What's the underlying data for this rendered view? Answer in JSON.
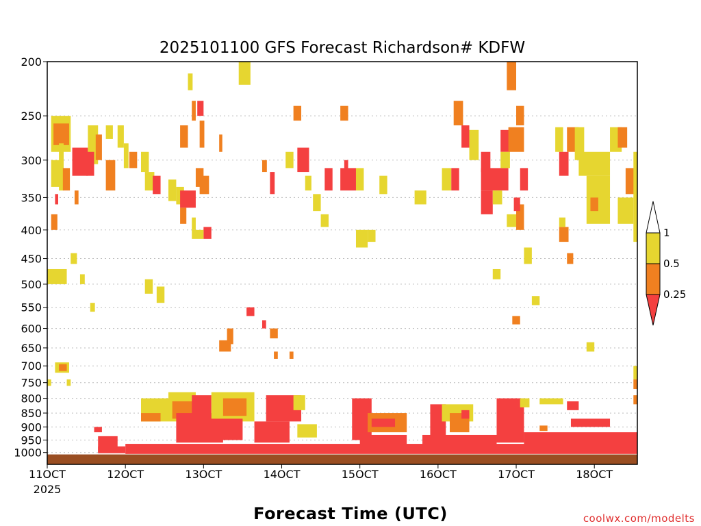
{
  "chart_data": {
    "type": "heatmap",
    "title": "2025101100 GFS Forecast Richardson# KDFW",
    "xlabel": "Forecast Time (UTC)",
    "ylabel": "",
    "credit": "coolwx.com/modelts",
    "x_start_day": 11,
    "x_end_day": 18.55,
    "x_ticks": [
      {
        "day": 11,
        "label": "11OCT",
        "sublabel": "2025"
      },
      {
        "day": 12,
        "label": "12OCT",
        "sublabel": ""
      },
      {
        "day": 13,
        "label": "13OCT",
        "sublabel": ""
      },
      {
        "day": 14,
        "label": "14OCT",
        "sublabel": ""
      },
      {
        "day": 15,
        "label": "15OCT",
        "sublabel": ""
      },
      {
        "day": 16,
        "label": "16OCT",
        "sublabel": ""
      },
      {
        "day": 17,
        "label": "17OCT",
        "sublabel": ""
      },
      {
        "day": 18,
        "label": "18OCT",
        "sublabel": ""
      }
    ],
    "y_axis": {
      "type": "log-pressure",
      "unit": "hPa",
      "top": 200,
      "bottom": 1050
    },
    "y_ticks": [
      200,
      250,
      300,
      350,
      400,
      450,
      500,
      550,
      600,
      650,
      700,
      750,
      800,
      850,
      900,
      950,
      1000
    ],
    "legend": {
      "categories": [
        {
          "label": "",
          "range": "> 1",
          "color": "#ffffff"
        },
        {
          "label": "1",
          "range": "0.5 - 1",
          "color": "#e6d630"
        },
        {
          "label": "0.5",
          "range": "0.25 - 0.5",
          "color": "#f08020"
        },
        {
          "label": "0.25",
          "range": "< 0.25",
          "color": "#f44040"
        }
      ]
    },
    "colors": {
      "yellow": "#e6d630",
      "orange": "#f08020",
      "red": "#f44040",
      "ground": "#9a4e22",
      "grid": "#bbbbbb"
    },
    "ground_top_hPa": 1008,
    "cells": [
      {
        "t": 11.05,
        "w": 0.25,
        "p1": 250,
        "p2": 290,
        "c": "yellow"
      },
      {
        "t": 11.08,
        "w": 0.2,
        "p1": 258,
        "p2": 282,
        "c": "orange"
      },
      {
        "t": 11.05,
        "w": 0.12,
        "p1": 300,
        "p2": 335,
        "c": "yellow"
      },
      {
        "t": 11.15,
        "w": 0.06,
        "p1": 280,
        "p2": 340,
        "c": "yellow"
      },
      {
        "t": 11.2,
        "w": 0.09,
        "p1": 310,
        "p2": 340,
        "c": "orange"
      },
      {
        "t": 11.32,
        "w": 0.2,
        "p1": 285,
        "p2": 320,
        "c": "red"
      },
      {
        "t": 11.52,
        "w": 0.13,
        "p1": 260,
        "p2": 305,
        "c": "yellow"
      },
      {
        "t": 11.5,
        "w": 0.1,
        "p1": 290,
        "p2": 320,
        "c": "red"
      },
      {
        "t": 11.62,
        "w": 0.08,
        "p1": 270,
        "p2": 300,
        "c": "orange"
      },
      {
        "t": 11.75,
        "w": 0.12,
        "p1": 300,
        "p2": 340,
        "c": "orange"
      },
      {
        "t": 11.75,
        "w": 0.09,
        "p1": 260,
        "p2": 275,
        "c": "yellow"
      },
      {
        "t": 11.9,
        "w": 0.08,
        "p1": 260,
        "p2": 285,
        "c": "yellow"
      },
      {
        "t": 11.98,
        "w": 0.06,
        "p1": 280,
        "p2": 310,
        "c": "yellow"
      },
      {
        "t": 11.1,
        "w": 0.04,
        "p1": 345,
        "p2": 360,
        "c": "red"
      },
      {
        "t": 11.35,
        "w": 0.05,
        "p1": 340,
        "p2": 360,
        "c": "orange"
      },
      {
        "t": 11.05,
        "w": 0.08,
        "p1": 375,
        "p2": 400,
        "c": "orange"
      },
      {
        "t": 11.0,
        "w": 0.25,
        "p1": 470,
        "p2": 500,
        "c": "yellow"
      },
      {
        "t": 11.3,
        "w": 0.08,
        "p1": 440,
        "p2": 460,
        "c": "yellow"
      },
      {
        "t": 11.42,
        "w": 0.06,
        "p1": 480,
        "p2": 500,
        "c": "yellow"
      },
      {
        "t": 11.1,
        "w": 0.18,
        "p1": 690,
        "p2": 720,
        "c": "yellow"
      },
      {
        "t": 11.15,
        "w": 0.1,
        "p1": 695,
        "p2": 715,
        "c": "orange"
      },
      {
        "t": 11.55,
        "w": 0.06,
        "p1": 540,
        "p2": 560,
        "c": "yellow"
      },
      {
        "t": 11.0,
        "w": 0.05,
        "p1": 740,
        "p2": 760,
        "c": "yellow"
      },
      {
        "t": 11.25,
        "w": 0.05,
        "p1": 740,
        "p2": 760,
        "c": "yellow"
      },
      {
        "t": 11.65,
        "w": 0.25,
        "p1": 935,
        "p2": 1000,
        "c": "red"
      },
      {
        "t": 11.6,
        "w": 0.1,
        "p1": 900,
        "p2": 920,
        "c": "red"
      },
      {
        "t": 12.05,
        "w": 0.1,
        "p1": 290,
        "p2": 310,
        "c": "orange"
      },
      {
        "t": 12.2,
        "w": 0.1,
        "p1": 290,
        "p2": 315,
        "c": "yellow"
      },
      {
        "t": 12.25,
        "w": 0.12,
        "p1": 315,
        "p2": 340,
        "c": "yellow"
      },
      {
        "t": 12.35,
        "w": 0.1,
        "p1": 320,
        "p2": 345,
        "c": "red"
      },
      {
        "t": 12.55,
        "w": 0.1,
        "p1": 325,
        "p2": 355,
        "c": "yellow"
      },
      {
        "t": 12.25,
        "w": 0.1,
        "p1": 490,
        "p2": 520,
        "c": "yellow"
      },
      {
        "t": 12.4,
        "w": 0.1,
        "p1": 505,
        "p2": 540,
        "c": "yellow"
      },
      {
        "t": 12.65,
        "w": 0.1,
        "p1": 335,
        "p2": 360,
        "c": "yellow"
      },
      {
        "t": 12.7,
        "w": 0.2,
        "p1": 340,
        "p2": 365,
        "c": "red"
      },
      {
        "t": 12.7,
        "w": 0.08,
        "p1": 365,
        "p2": 390,
        "c": "orange"
      },
      {
        "t": 12.9,
        "w": 0.1,
        "p1": 310,
        "p2": 335,
        "c": "orange"
      },
      {
        "t": 12.95,
        "w": 0.12,
        "p1": 320,
        "p2": 345,
        "c": "orange"
      },
      {
        "t": 12.85,
        "w": 0.05,
        "p1": 380,
        "p2": 400,
        "c": "yellow"
      },
      {
        "t": 13.0,
        "w": 0.1,
        "p1": 395,
        "p2": 415,
        "c": "red"
      },
      {
        "t": 12.85,
        "w": 0.15,
        "p1": 400,
        "p2": 415,
        "c": "yellow"
      },
      {
        "t": 12.95,
        "w": 0.06,
        "p1": 255,
        "p2": 285,
        "c": "orange"
      },
      {
        "t": 12.7,
        "w": 0.1,
        "p1": 260,
        "p2": 285,
        "c": "orange"
      },
      {
        "t": 12.85,
        "w": 0.05,
        "p1": 235,
        "p2": 255,
        "c": "orange"
      },
      {
        "t": 12.92,
        "w": 0.08,
        "p1": 235,
        "p2": 250,
        "c": "red"
      },
      {
        "t": 12.8,
        "w": 0.06,
        "p1": 210,
        "p2": 225,
        "c": "yellow"
      },
      {
        "t": 13.45,
        "w": 0.15,
        "p1": 200,
        "p2": 220,
        "c": "yellow"
      },
      {
        "t": 13.2,
        "w": 0.04,
        "p1": 270,
        "p2": 290,
        "c": "orange"
      },
      {
        "t": 13.75,
        "w": 0.06,
        "p1": 300,
        "p2": 315,
        "c": "orange"
      },
      {
        "t": 13.85,
        "w": 0.06,
        "p1": 315,
        "p2": 345,
        "c": "red"
      },
      {
        "t": 13.2,
        "w": 0.15,
        "p1": 630,
        "p2": 660,
        "c": "orange"
      },
      {
        "t": 13.3,
        "w": 0.08,
        "p1": 600,
        "p2": 640,
        "c": "orange"
      },
      {
        "t": 13.55,
        "w": 0.1,
        "p1": 550,
        "p2": 570,
        "c": "red"
      },
      {
        "t": 13.75,
        "w": 0.05,
        "p1": 580,
        "p2": 600,
        "c": "red"
      },
      {
        "t": 13.85,
        "w": 0.1,
        "p1": 600,
        "p2": 625,
        "c": "orange"
      },
      {
        "t": 13.9,
        "w": 0.05,
        "p1": 660,
        "p2": 680,
        "c": "orange"
      },
      {
        "t": 14.1,
        "w": 0.05,
        "p1": 660,
        "p2": 680,
        "c": "orange"
      },
      {
        "t": 14.2,
        "w": 0.15,
        "p1": 285,
        "p2": 315,
        "c": "red"
      },
      {
        "t": 14.15,
        "w": 0.1,
        "p1": 240,
        "p2": 255,
        "c": "orange"
      },
      {
        "t": 14.05,
        "w": 0.1,
        "p1": 290,
        "p2": 310,
        "c": "yellow"
      },
      {
        "t": 14.3,
        "w": 0.08,
        "p1": 320,
        "p2": 340,
        "c": "yellow"
      },
      {
        "t": 14.4,
        "w": 0.1,
        "p1": 345,
        "p2": 370,
        "c": "yellow"
      },
      {
        "t": 14.5,
        "w": 0.1,
        "p1": 375,
        "p2": 395,
        "c": "yellow"
      },
      {
        "t": 14.55,
        "w": 0.1,
        "p1": 310,
        "p2": 340,
        "c": "red"
      },
      {
        "t": 14.75,
        "w": 0.2,
        "p1": 310,
        "p2": 340,
        "c": "red"
      },
      {
        "t": 14.75,
        "w": 0.1,
        "p1": 240,
        "p2": 255,
        "c": "orange"
      },
      {
        "t": 14.8,
        "w": 0.05,
        "p1": 300,
        "p2": 320,
        "c": "red"
      },
      {
        "t": 14.95,
        "w": 0.1,
        "p1": 310,
        "p2": 340,
        "c": "yellow"
      },
      {
        "t": 14.95,
        "w": 0.15,
        "p1": 400,
        "p2": 430,
        "c": "yellow"
      },
      {
        "t": 15.1,
        "w": 0.1,
        "p1": 400,
        "p2": 420,
        "c": "yellow"
      },
      {
        "t": 15.25,
        "w": 0.1,
        "p1": 320,
        "p2": 345,
        "c": "yellow"
      },
      {
        "t": 15.7,
        "w": 0.15,
        "p1": 340,
        "p2": 360,
        "c": "yellow"
      },
      {
        "t": 16.05,
        "w": 0.12,
        "p1": 310,
        "p2": 340,
        "c": "yellow"
      },
      {
        "t": 16.17,
        "w": 0.1,
        "p1": 310,
        "p2": 340,
        "c": "red"
      },
      {
        "t": 16.2,
        "w": 0.12,
        "p1": 235,
        "p2": 260,
        "c": "orange"
      },
      {
        "t": 16.3,
        "w": 0.1,
        "p1": 260,
        "p2": 285,
        "c": "red"
      },
      {
        "t": 16.4,
        "w": 0.12,
        "p1": 265,
        "p2": 300,
        "c": "yellow"
      },
      {
        "t": 16.55,
        "w": 0.12,
        "p1": 290,
        "p2": 315,
        "c": "red"
      },
      {
        "t": 16.55,
        "w": 0.35,
        "p1": 310,
        "p2": 340,
        "c": "red"
      },
      {
        "t": 16.55,
        "w": 0.15,
        "p1": 340,
        "p2": 375,
        "c": "red"
      },
      {
        "t": 16.7,
        "w": 0.12,
        "p1": 340,
        "p2": 360,
        "c": "yellow"
      },
      {
        "t": 16.8,
        "w": 0.12,
        "p1": 265,
        "p2": 290,
        "c": "red"
      },
      {
        "t": 16.8,
        "w": 0.12,
        "p1": 290,
        "p2": 310,
        "c": "yellow"
      },
      {
        "t": 16.88,
        "w": 0.12,
        "p1": 200,
        "p2": 225,
        "c": "orange"
      },
      {
        "t": 16.9,
        "w": 0.2,
        "p1": 262,
        "p2": 290,
        "c": "orange"
      },
      {
        "t": 17.0,
        "w": 0.1,
        "p1": 240,
        "p2": 260,
        "c": "orange"
      },
      {
        "t": 17.05,
        "w": 0.1,
        "p1": 310,
        "p2": 340,
        "c": "red"
      },
      {
        "t": 16.88,
        "w": 0.2,
        "p1": 375,
        "p2": 395,
        "c": "yellow"
      },
      {
        "t": 17.0,
        "w": 0.1,
        "p1": 360,
        "p2": 400,
        "c": "orange"
      },
      {
        "t": 16.97,
        "w": 0.08,
        "p1": 350,
        "p2": 370,
        "c": "red"
      },
      {
        "t": 17.1,
        "w": 0.1,
        "p1": 430,
        "p2": 460,
        "c": "yellow"
      },
      {
        "t": 17.2,
        "w": 0.1,
        "p1": 525,
        "p2": 545,
        "c": "yellow"
      },
      {
        "t": 16.95,
        "w": 0.1,
        "p1": 570,
        "p2": 590,
        "c": "orange"
      },
      {
        "t": 16.7,
        "w": 0.1,
        "p1": 470,
        "p2": 490,
        "c": "yellow"
      },
      {
        "t": 17.5,
        "w": 0.1,
        "p1": 262,
        "p2": 290,
        "c": "yellow"
      },
      {
        "t": 17.55,
        "w": 0.12,
        "p1": 290,
        "p2": 320,
        "c": "red"
      },
      {
        "t": 17.65,
        "w": 0.15,
        "p1": 262,
        "p2": 290,
        "c": "orange"
      },
      {
        "t": 17.75,
        "w": 0.12,
        "p1": 262,
        "p2": 300,
        "c": "yellow"
      },
      {
        "t": 17.8,
        "w": 0.4,
        "p1": 290,
        "p2": 320,
        "c": "yellow"
      },
      {
        "t": 17.9,
        "w": 0.3,
        "p1": 320,
        "p2": 390,
        "c": "yellow"
      },
      {
        "t": 17.95,
        "w": 0.1,
        "p1": 350,
        "p2": 370,
        "c": "orange"
      },
      {
        "t": 18.2,
        "w": 0.15,
        "p1": 262,
        "p2": 290,
        "c": "yellow"
      },
      {
        "t": 18.3,
        "w": 0.12,
        "p1": 262,
        "p2": 285,
        "c": "orange"
      },
      {
        "t": 18.4,
        "w": 0.12,
        "p1": 310,
        "p2": 345,
        "c": "orange"
      },
      {
        "t": 18.3,
        "w": 0.2,
        "p1": 350,
        "p2": 390,
        "c": "yellow"
      },
      {
        "t": 18.5,
        "w": 0.05,
        "p1": 290,
        "p2": 420,
        "c": "yellow"
      },
      {
        "t": 17.55,
        "w": 0.12,
        "p1": 395,
        "p2": 420,
        "c": "orange"
      },
      {
        "t": 17.55,
        "w": 0.08,
        "p1": 380,
        "p2": 395,
        "c": "yellow"
      },
      {
        "t": 17.65,
        "w": 0.08,
        "p1": 440,
        "p2": 460,
        "c": "orange"
      },
      {
        "t": 17.9,
        "w": 0.1,
        "p1": 635,
        "p2": 660,
        "c": "yellow"
      },
      {
        "t": 18.5,
        "w": 0.05,
        "p1": 700,
        "p2": 740,
        "c": "yellow"
      },
      {
        "t": 18.5,
        "w": 0.05,
        "p1": 740,
        "p2": 770,
        "c": "orange"
      },
      {
        "t": 18.5,
        "w": 0.05,
        "p1": 790,
        "p2": 820,
        "c": "orange"
      },
      {
        "t": 12.2,
        "w": 0.55,
        "p1": 800,
        "p2": 880,
        "c": "yellow"
      },
      {
        "t": 12.2,
        "w": 0.25,
        "p1": 850,
        "p2": 880,
        "c": "orange"
      },
      {
        "t": 12.55,
        "w": 0.35,
        "p1": 780,
        "p2": 850,
        "c": "yellow"
      },
      {
        "t": 12.6,
        "w": 0.3,
        "p1": 810,
        "p2": 870,
        "c": "orange"
      },
      {
        "t": 12.65,
        "w": 0.6,
        "p1": 850,
        "p2": 960,
        "c": "red"
      },
      {
        "t": 12.85,
        "w": 0.25,
        "p1": 790,
        "p2": 870,
        "c": "red"
      },
      {
        "t": 13.1,
        "w": 0.55,
        "p1": 780,
        "p2": 880,
        "c": "yellow"
      },
      {
        "t": 13.25,
        "w": 0.3,
        "p1": 800,
        "p2": 860,
        "c": "orange"
      },
      {
        "t": 13.05,
        "w": 0.45,
        "p1": 870,
        "p2": 950,
        "c": "red"
      },
      {
        "t": 13.8,
        "w": 0.45,
        "p1": 790,
        "p2": 880,
        "c": "red"
      },
      {
        "t": 14.15,
        "w": 0.15,
        "p1": 790,
        "p2": 840,
        "c": "yellow"
      },
      {
        "t": 13.65,
        "w": 0.45,
        "p1": 880,
        "p2": 960,
        "c": "red"
      },
      {
        "t": 14.2,
        "w": 0.25,
        "p1": 890,
        "p2": 940,
        "c": "yellow"
      },
      {
        "t": 14.9,
        "w": 0.25,
        "p1": 800,
        "p2": 950,
        "c": "red"
      },
      {
        "t": 15.1,
        "w": 0.5,
        "p1": 850,
        "p2": 920,
        "c": "orange"
      },
      {
        "t": 15.15,
        "w": 0.3,
        "p1": 870,
        "p2": 900,
        "c": "red"
      },
      {
        "t": 15.0,
        "w": 0.6,
        "p1": 930,
        "p2": 985,
        "c": "red"
      },
      {
        "t": 15.9,
        "w": 0.2,
        "p1": 820,
        "p2": 950,
        "c": "red"
      },
      {
        "t": 16.05,
        "w": 0.4,
        "p1": 820,
        "p2": 880,
        "c": "yellow"
      },
      {
        "t": 16.15,
        "w": 0.25,
        "p1": 850,
        "p2": 920,
        "c": "orange"
      },
      {
        "t": 16.3,
        "w": 0.1,
        "p1": 840,
        "p2": 870,
        "c": "red"
      },
      {
        "t": 15.8,
        "w": 0.95,
        "p1": 930,
        "p2": 1000,
        "c": "red"
      },
      {
        "t": 16.75,
        "w": 0.35,
        "p1": 800,
        "p2": 960,
        "c": "red"
      },
      {
        "t": 17.05,
        "w": 0.12,
        "p1": 800,
        "p2": 830,
        "c": "yellow"
      },
      {
        "t": 17.3,
        "w": 0.3,
        "p1": 800,
        "p2": 820,
        "c": "yellow"
      },
      {
        "t": 17.3,
        "w": 0.1,
        "p1": 895,
        "p2": 915,
        "c": "orange"
      },
      {
        "t": 17.65,
        "w": 0.15,
        "p1": 810,
        "p2": 840,
        "c": "red"
      },
      {
        "t": 17.7,
        "w": 0.5,
        "p1": 870,
        "p2": 900,
        "c": "red"
      },
      {
        "t": 17.1,
        "w": 1.45,
        "p1": 920,
        "p2": 1000,
        "c": "red"
      },
      {
        "t": 12.0,
        "w": 6.55,
        "p1": 965,
        "p2": 1006,
        "c": "red"
      },
      {
        "t": 11.65,
        "w": 0.35,
        "p1": 975,
        "p2": 1003,
        "c": "red"
      }
    ]
  }
}
